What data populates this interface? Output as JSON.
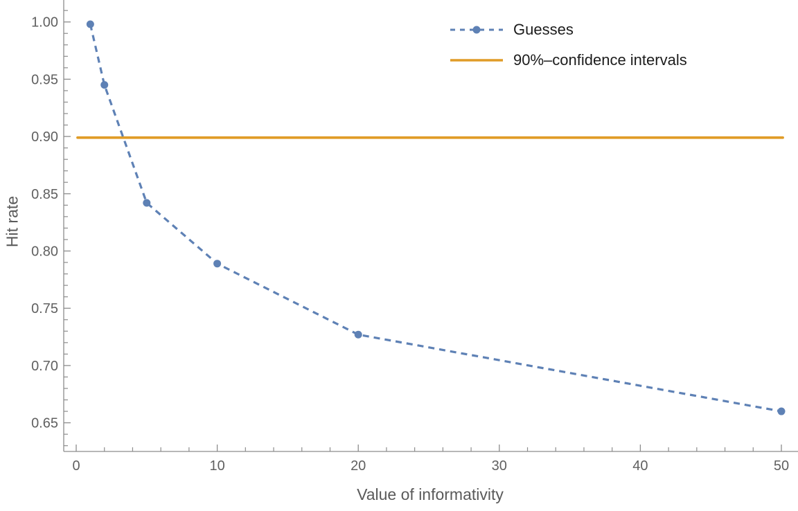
{
  "chart_data": {
    "type": "line",
    "title": "",
    "xlabel": "Value of informativity",
    "ylabel": "Hit rate",
    "xlim": [
      -0.9,
      51.2
    ],
    "ylim": [
      0.625,
      1.019
    ],
    "grid": false,
    "legend_position": "top-right",
    "x_ticks": [
      {
        "v": 0,
        "label": "0"
      },
      {
        "v": 10,
        "label": "10"
      },
      {
        "v": 20,
        "label": "20"
      },
      {
        "v": 30,
        "label": "30"
      },
      {
        "v": 40,
        "label": "40"
      },
      {
        "v": 50,
        "label": "50"
      }
    ],
    "x_minor_tick_step": 2,
    "y_ticks": [
      {
        "v": 0.65,
        "label": "0.65"
      },
      {
        "v": 0.7,
        "label": "0.70"
      },
      {
        "v": 0.75,
        "label": "0.75"
      },
      {
        "v": 0.8,
        "label": "0.80"
      },
      {
        "v": 0.85,
        "label": "0.85"
      },
      {
        "v": 0.9,
        "label": "0.90"
      },
      {
        "v": 0.95,
        "label": "0.95"
      },
      {
        "v": 1.0,
        "label": "1.00"
      }
    ],
    "y_minor_tick_step": 0.01,
    "series": [
      {
        "name": "Guesses",
        "style": "dashed-line-with-points",
        "color": "#5e81b5",
        "x": [
          1,
          2,
          5,
          10,
          20,
          50
        ],
        "y": [
          0.998,
          0.945,
          0.842,
          0.789,
          0.727,
          0.66
        ]
      },
      {
        "name": "90%–confidence intervals",
        "style": "solid-horizontal-line",
        "color": "#e09c27",
        "y": 0.899,
        "x_start": 0.1,
        "x_end": 50.1
      }
    ]
  },
  "colors": {
    "background": "#ffffff",
    "axis": "#8c8c8c",
    "tick_label": "#606060",
    "axis_label": "#5a5a5a",
    "legend_text": "#1c1c1c"
  }
}
